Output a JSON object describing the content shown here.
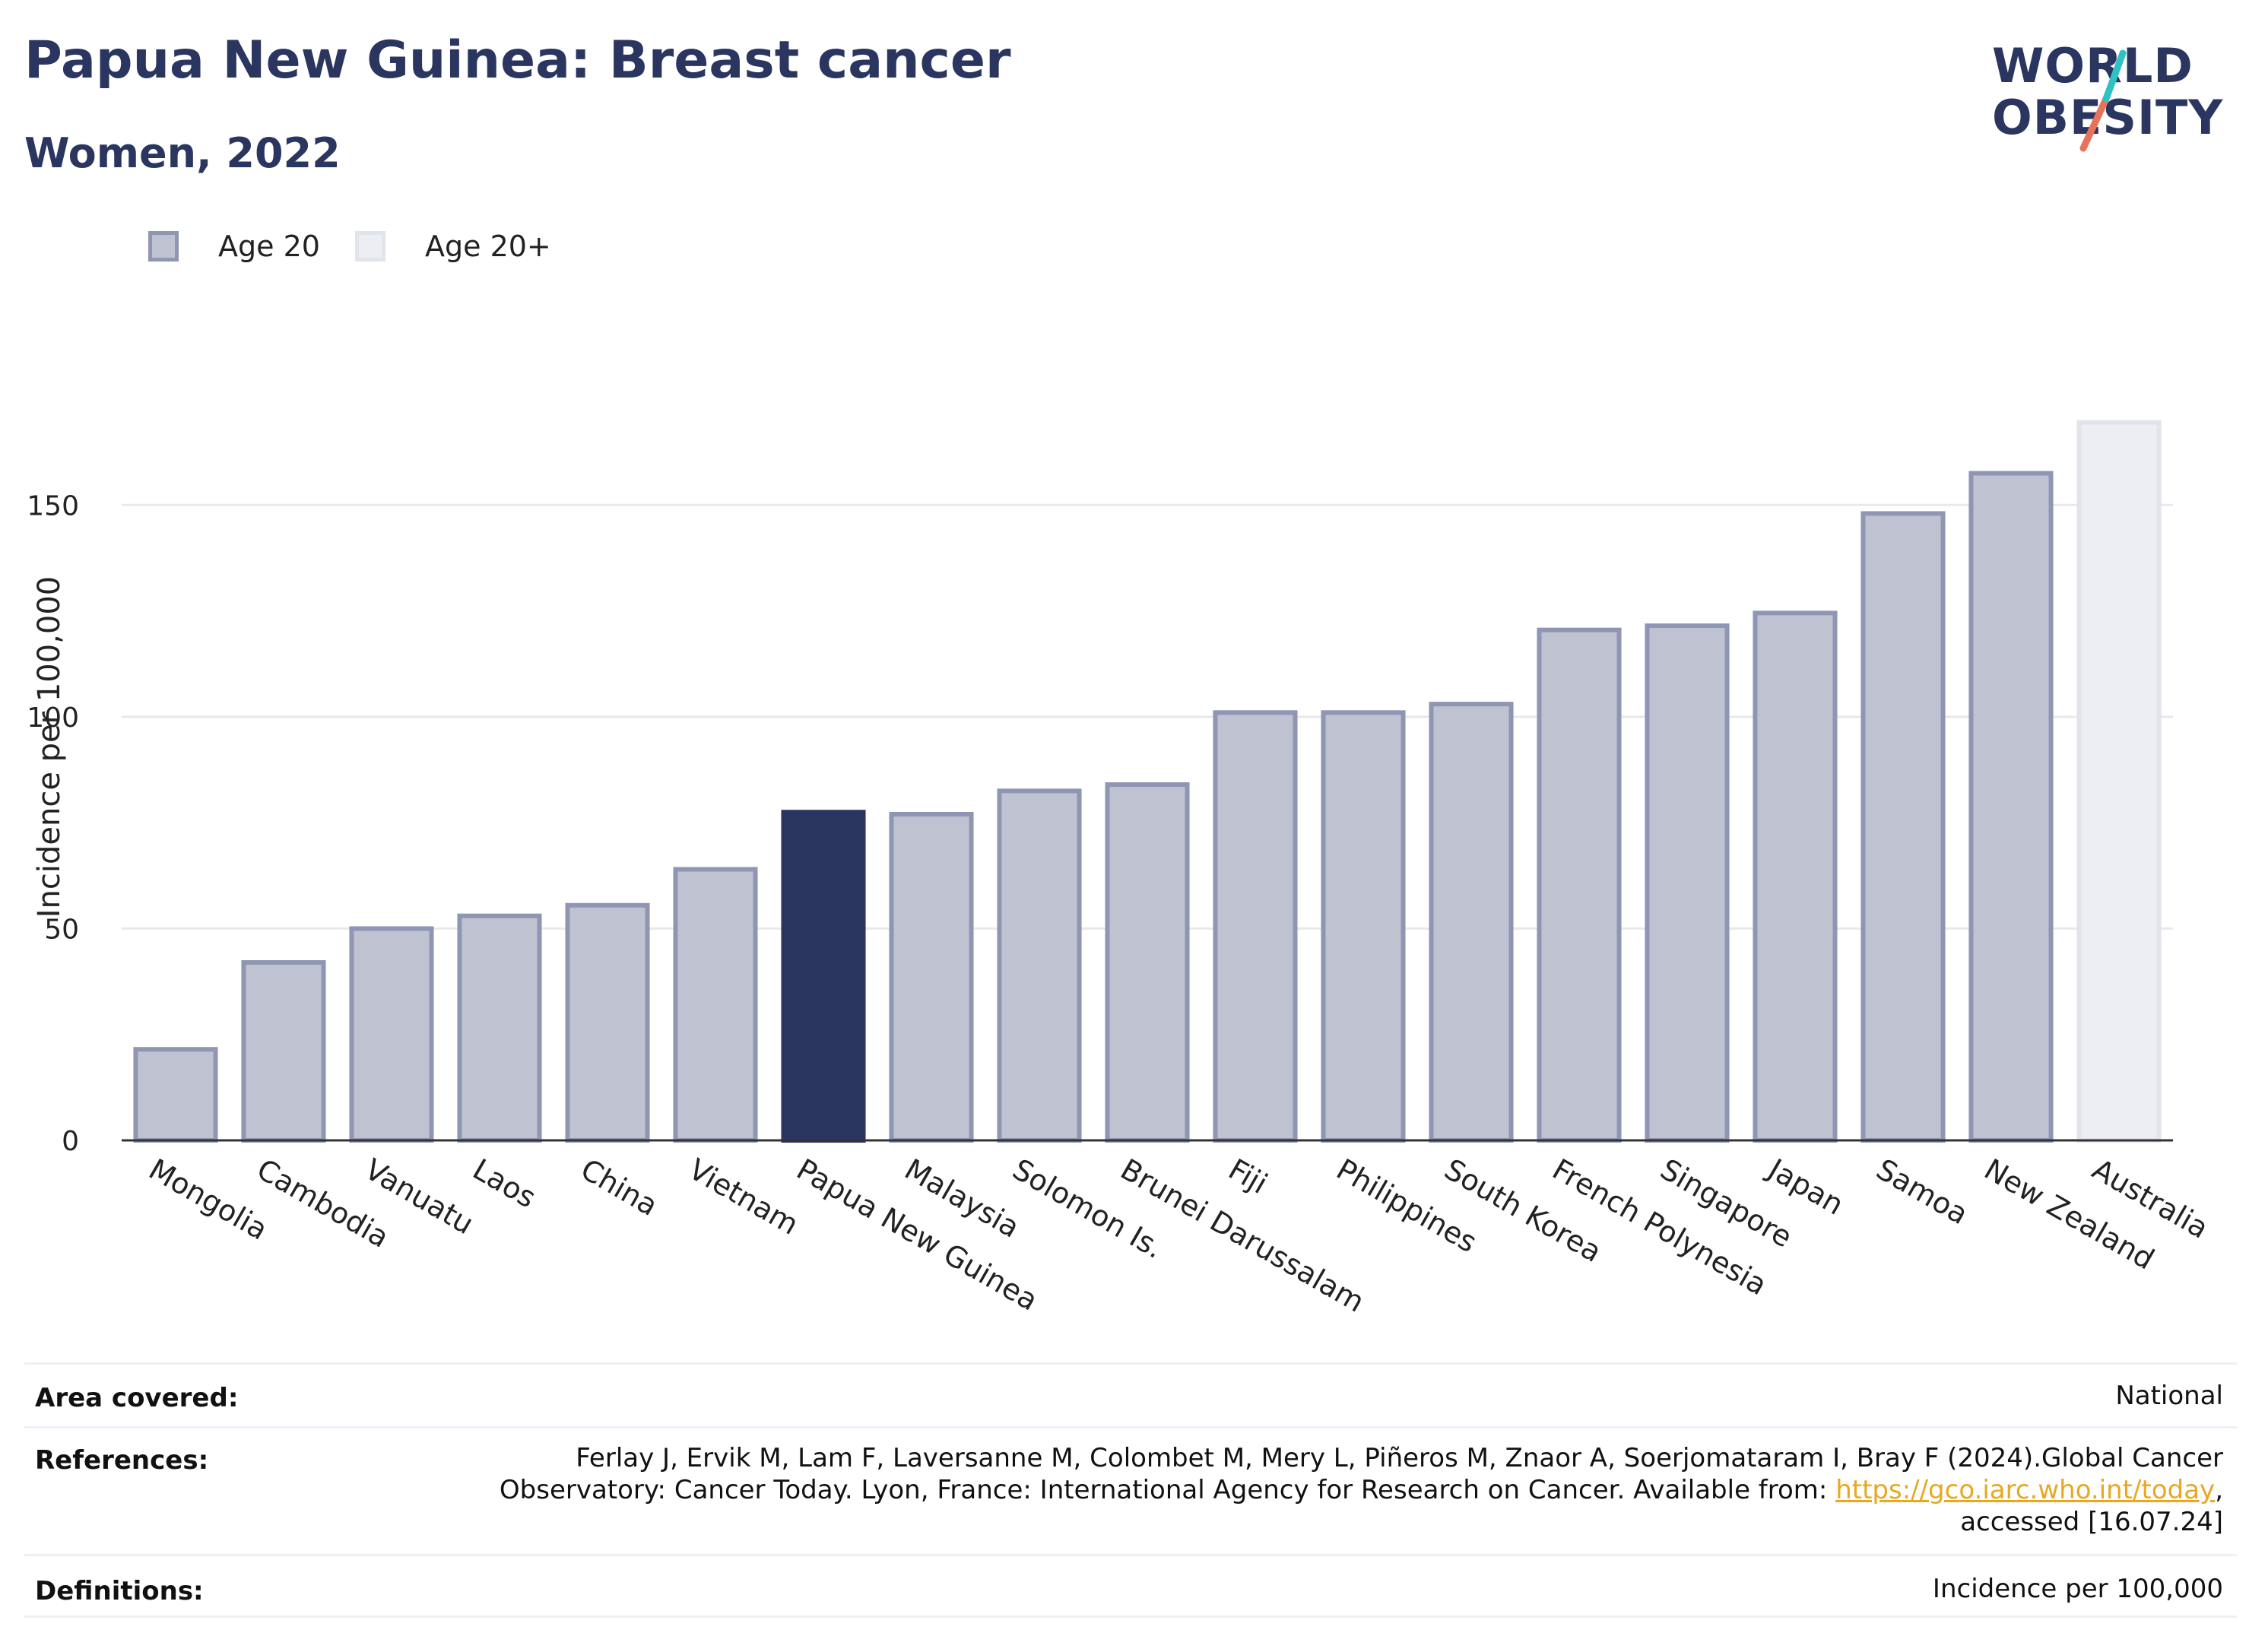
{
  "header": {
    "title": "Papua New Guinea: Breast cancer",
    "subtitle": "Women, 2022"
  },
  "logo": {
    "line1": "WORLD",
    "line2": "OBESITY",
    "accent_colors": [
      "#2fc1c4",
      "#e8735a"
    ]
  },
  "legend": {
    "items": [
      {
        "label": "Age 20",
        "color": "#bfc2d0"
      },
      {
        "label": "Age 20+",
        "color": "#edeef3"
      }
    ]
  },
  "chart_data": {
    "type": "bar",
    "ylabel": "Incidence per 100,000",
    "ylim": [
      0,
      175
    ],
    "yticks": [
      0,
      50,
      100,
      150
    ],
    "grid": true,
    "legend_placement": "top-left",
    "categories": [
      "Mongolia",
      "Cambodia",
      "Vanuatu",
      "Laos",
      "China",
      "Vietnam",
      "Papua New Guinea",
      "Malaysia",
      "Solomon Is.",
      "Brunei Darussalam",
      "Fiji",
      "Philippines",
      "South Korea",
      "French Polynesia",
      "Singapore",
      "Japan",
      "Samoa",
      "New Zealand",
      "Australia"
    ],
    "values": [
      21.5,
      42,
      50,
      53,
      55.5,
      64,
      77.5,
      77,
      82.5,
      84,
      101,
      101,
      103,
      120.5,
      121.5,
      124.5,
      148,
      157.5,
      169.5
    ],
    "series_of_bar": [
      "Age 20",
      "Age 20",
      "Age 20",
      "Age 20",
      "Age 20",
      "Age 20",
      "Age 20",
      "Age 20",
      "Age 20",
      "Age 20",
      "Age 20",
      "Age 20",
      "Age 20",
      "Age 20",
      "Age 20",
      "Age 20",
      "Age 20",
      "Age 20",
      "Age 20+"
    ],
    "highlight": "Papua New Guinea",
    "colors": {
      "age20_fill": "#bfc2d0",
      "age20_stroke": "#8f96b3",
      "age20plus_fill": "#edeef3",
      "age20plus_stroke": "#e2e4ec",
      "highlight_fill": "#2a3560",
      "grid": "#e8e9ef",
      "axis": "#333333"
    }
  },
  "info": {
    "area_label": "Area covered:",
    "area_value": "National",
    "references_label": "References:",
    "references_line1": "Ferlay J, Ervik M, Lam F, Laversanne M, Colombet M, Mery L, Piñeros M, Znaor A, Soerjomataram I, Bray F (2024).Global Cancer",
    "references_line2_prefix": "Observatory: Cancer Today. Lyon, France: International Agency for Research on Cancer. Available from: ",
    "references_link": "https://gco.iarc.who.int/today",
    "references_line2_suffix": ",",
    "references_line3": "accessed [16.07.24]",
    "definitions_label": "Definitions:",
    "definitions_value": "Incidence per 100,000"
  }
}
